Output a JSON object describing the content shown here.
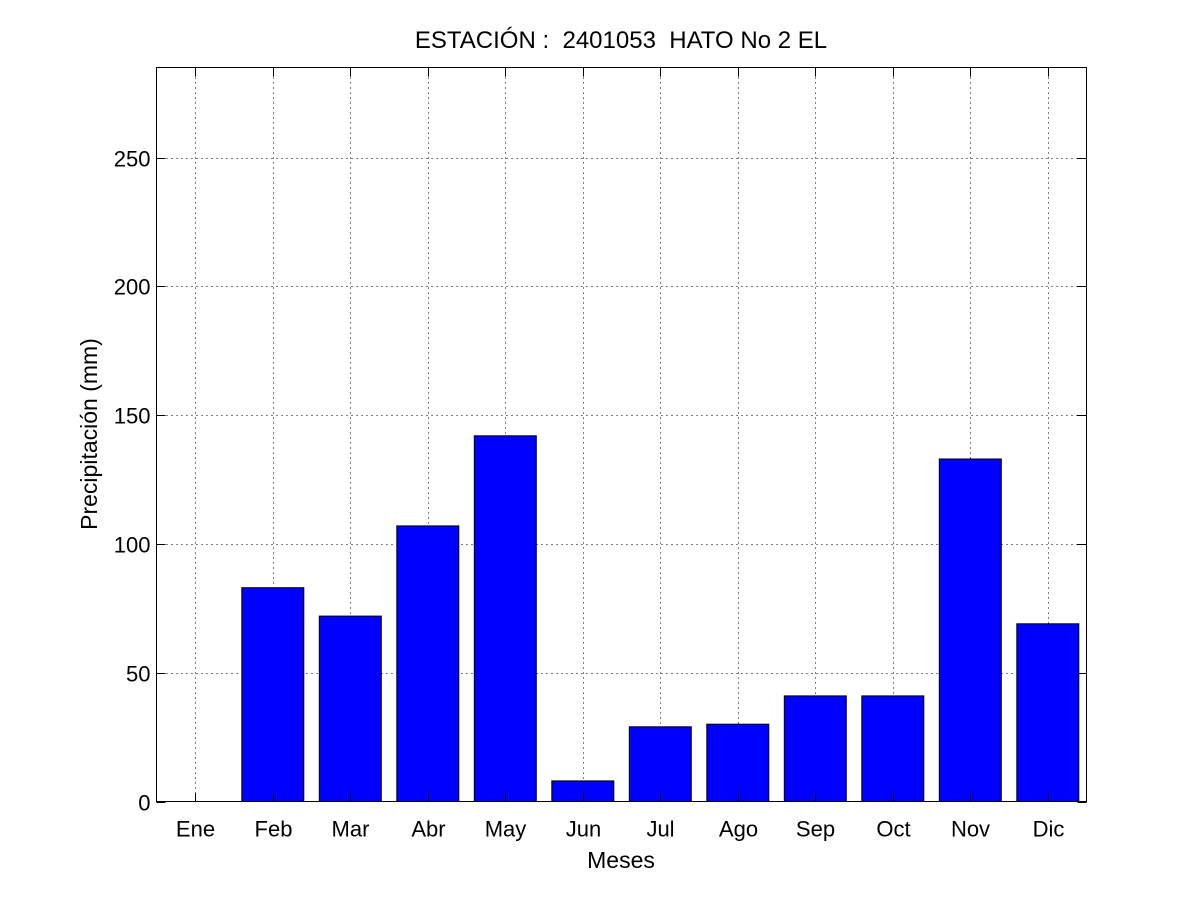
{
  "chart_data": {
    "type": "bar",
    "title": "ESTACIÓN :  2401053  HATO No 2 EL",
    "xlabel": "Meses",
    "ylabel": "Precipitación (mm)",
    "categories": [
      "Ene",
      "Feb",
      "Mar",
      "Abr",
      "May",
      "Jun",
      "Jul",
      "Ago",
      "Sep",
      "Oct",
      "Nov",
      "Dic"
    ],
    "values": [
      0,
      83,
      72,
      107,
      142,
      8,
      29,
      30,
      41,
      41,
      133,
      69
    ],
    "ylim": [
      0,
      285
    ],
    "yticks": [
      0,
      50,
      100,
      150,
      200,
      250
    ],
    "grid": true,
    "bar_color": "#0000ff"
  }
}
